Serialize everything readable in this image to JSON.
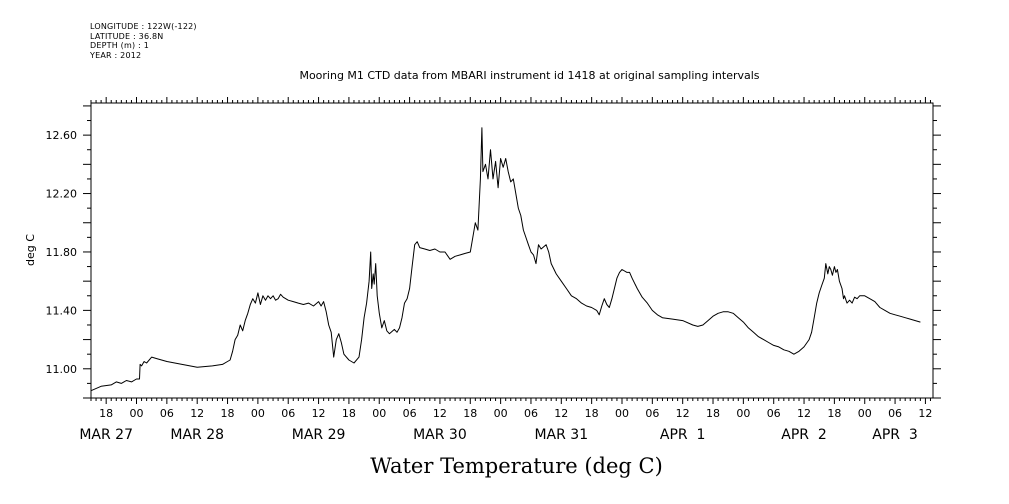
{
  "metadata": {
    "longitude": "LONGITUDE : 122W(-122)",
    "latitude": "LATITUDE : 36.8N",
    "depth": "DEPTH (m) : 1",
    "year": "YEAR : 2012"
  },
  "chart_data": {
    "type": "line",
    "title": "Mooring M1 CTD data from MBARI instrument id 1418 at original sampling intervals",
    "xlabel": "Water Temperature (deg C)",
    "ylabel": "deg C",
    "ylim": [
      10.8,
      12.82
    ],
    "xlim_hours": [
      0,
      166.5
    ],
    "y_ticks": [
      "11.00",
      "11.40",
      "11.80",
      "12.20",
      "12.60"
    ],
    "y_tick_values": [
      11.0,
      11.4,
      11.8,
      12.2,
      12.6
    ],
    "x_hour_labels": [
      {
        "label": "18",
        "t": 3
      },
      {
        "label": "00",
        "t": 9
      },
      {
        "label": "06",
        "t": 15
      },
      {
        "label": "12",
        "t": 21
      },
      {
        "label": "18",
        "t": 27
      },
      {
        "label": "00",
        "t": 33
      },
      {
        "label": "06",
        "t": 39
      },
      {
        "label": "12",
        "t": 45
      },
      {
        "label": "18",
        "t": 51
      },
      {
        "label": "00",
        "t": 57
      },
      {
        "label": "06",
        "t": 63
      },
      {
        "label": "12",
        "t": 69
      },
      {
        "label": "18",
        "t": 75
      },
      {
        "label": "00",
        "t": 81
      },
      {
        "label": "06",
        "t": 87
      },
      {
        "label": "12",
        "t": 93
      },
      {
        "label": "18",
        "t": 99
      },
      {
        "label": "00",
        "t": 105
      },
      {
        "label": "06",
        "t": 111
      },
      {
        "label": "12",
        "t": 117
      },
      {
        "label": "18",
        "t": 123
      },
      {
        "label": "00",
        "t": 129
      },
      {
        "label": "06",
        "t": 135
      },
      {
        "label": "12",
        "t": 141
      },
      {
        "label": "18",
        "t": 147
      },
      {
        "label": "00",
        "t": 153
      },
      {
        "label": "06",
        "t": 159
      },
      {
        "label": "12",
        "t": 165
      }
    ],
    "x_date_labels": [
      {
        "label": "MAR 27",
        "t": 3
      },
      {
        "label": "MAR 28",
        "t": 21
      },
      {
        "label": "MAR 29",
        "t": 45
      },
      {
        "label": "MAR 30",
        "t": 69
      },
      {
        "label": "MAR 31",
        "t": 93
      },
      {
        "label": "APR  1",
        "t": 117
      },
      {
        "label": "APR  2",
        "t": 141
      },
      {
        "label": "APR  3",
        "t": 159
      }
    ],
    "series": [
      {
        "color": "#000000",
        "points": [
          [
            0.0,
            10.85
          ],
          [
            2,
            10.88
          ],
          [
            4,
            10.89
          ],
          [
            5,
            10.91
          ],
          [
            6,
            10.9
          ],
          [
            7,
            10.92
          ],
          [
            8,
            10.91
          ],
          [
            9,
            10.93
          ],
          [
            9.6,
            10.93
          ],
          [
            9.7,
            11.03
          ],
          [
            10,
            11.02
          ],
          [
            10.5,
            11.05
          ],
          [
            11,
            11.04
          ],
          [
            12,
            11.08
          ],
          [
            13,
            11.07
          ],
          [
            15,
            11.05
          ],
          [
            18,
            11.03
          ],
          [
            21,
            11.01
          ],
          [
            24,
            11.02
          ],
          [
            26,
            11.03
          ],
          [
            27,
            11.05
          ],
          [
            27.5,
            11.06
          ],
          [
            28,
            11.12
          ],
          [
            28.5,
            11.2
          ],
          [
            29,
            11.23
          ],
          [
            29.5,
            11.3
          ],
          [
            30,
            11.26
          ],
          [
            30.5,
            11.33
          ],
          [
            31,
            11.38
          ],
          [
            31.5,
            11.44
          ],
          [
            32,
            11.48
          ],
          [
            32.5,
            11.45
          ],
          [
            33,
            11.52
          ],
          [
            33.5,
            11.44
          ],
          [
            34,
            11.5
          ],
          [
            34.5,
            11.47
          ],
          [
            35,
            11.5
          ],
          [
            35.5,
            11.48
          ],
          [
            36,
            11.5
          ],
          [
            36.5,
            11.47
          ],
          [
            37,
            11.48
          ],
          [
            37.5,
            11.51
          ],
          [
            38,
            11.49
          ],
          [
            38.5,
            11.48
          ],
          [
            39,
            11.47
          ],
          [
            40,
            11.46
          ],
          [
            41,
            11.45
          ],
          [
            42,
            11.44
          ],
          [
            43,
            11.45
          ],
          [
            44,
            11.43
          ],
          [
            45,
            11.46
          ],
          [
            45.5,
            11.43
          ],
          [
            46,
            11.46
          ],
          [
            46.5,
            11.39
          ],
          [
            47,
            11.3
          ],
          [
            47.5,
            11.25
          ],
          [
            48,
            11.08
          ],
          [
            48.5,
            11.2
          ],
          [
            49,
            11.24
          ],
          [
            49.5,
            11.18
          ],
          [
            50,
            11.1
          ],
          [
            51,
            11.06
          ],
          [
            52,
            11.04
          ],
          [
            53,
            11.08
          ],
          [
            53.5,
            11.2
          ],
          [
            54,
            11.35
          ],
          [
            54.5,
            11.45
          ],
          [
            55,
            11.6
          ],
          [
            55.3,
            11.8
          ],
          [
            55.5,
            11.55
          ],
          [
            55.8,
            11.65
          ],
          [
            56,
            11.58
          ],
          [
            56.3,
            11.72
          ],
          [
            56.6,
            11.5
          ],
          [
            57,
            11.38
          ],
          [
            57.5,
            11.28
          ],
          [
            58,
            11.33
          ],
          [
            58.5,
            11.26
          ],
          [
            59,
            11.24
          ],
          [
            60,
            11.27
          ],
          [
            60.5,
            11.25
          ],
          [
            61,
            11.28
          ],
          [
            61.5,
            11.35
          ],
          [
            62,
            11.45
          ],
          [
            62.5,
            11.48
          ],
          [
            63,
            11.55
          ],
          [
            63.5,
            11.7
          ],
          [
            64,
            11.85
          ],
          [
            64.5,
            11.87
          ],
          [
            65,
            11.83
          ],
          [
            66,
            11.82
          ],
          [
            67,
            11.81
          ],
          [
            68,
            11.82
          ],
          [
            69,
            11.8
          ],
          [
            70,
            11.8
          ],
          [
            71,
            11.75
          ],
          [
            72,
            11.77
          ],
          [
            73,
            11.78
          ],
          [
            74,
            11.79
          ],
          [
            75,
            11.8
          ],
          [
            75.5,
            11.9
          ],
          [
            76,
            12.0
          ],
          [
            76.5,
            11.95
          ],
          [
            77,
            12.3
          ],
          [
            77.3,
            12.65
          ],
          [
            77.5,
            12.35
          ],
          [
            78,
            12.4
          ],
          [
            78.5,
            12.3
          ],
          [
            79,
            12.5
          ],
          [
            79.5,
            12.3
          ],
          [
            80,
            12.42
          ],
          [
            80.5,
            12.24
          ],
          [
            81,
            12.44
          ],
          [
            81.5,
            12.38
          ],
          [
            82,
            12.44
          ],
          [
            82.5,
            12.35
          ],
          [
            83,
            12.28
          ],
          [
            83.5,
            12.3
          ],
          [
            84,
            12.2
          ],
          [
            84.5,
            12.1
          ],
          [
            85,
            12.05
          ],
          [
            85.5,
            11.95
          ],
          [
            86,
            11.9
          ],
          [
            86.5,
            11.85
          ],
          [
            87,
            11.8
          ],
          [
            87.5,
            11.78
          ],
          [
            88,
            11.72
          ],
          [
            88.5,
            11.85
          ],
          [
            89,
            11.82
          ],
          [
            90,
            11.85
          ],
          [
            90.5,
            11.8
          ],
          [
            91,
            11.72
          ],
          [
            92,
            11.65
          ],
          [
            93,
            11.6
          ],
          [
            94,
            11.55
          ],
          [
            95,
            11.5
          ],
          [
            96,
            11.48
          ],
          [
            97,
            11.45
          ],
          [
            98,
            11.43
          ],
          [
            99,
            11.42
          ],
          [
            100,
            11.4
          ],
          [
            100.5,
            11.37
          ],
          [
            101,
            11.43
          ],
          [
            101.5,
            11.48
          ],
          [
            102,
            11.44
          ],
          [
            102.5,
            11.42
          ],
          [
            103,
            11.48
          ],
          [
            103.5,
            11.55
          ],
          [
            104,
            11.62
          ],
          [
            104.5,
            11.66
          ],
          [
            105,
            11.68
          ],
          [
            106,
            11.66
          ],
          [
            106.5,
            11.66
          ],
          [
            107,
            11.62
          ],
          [
            108,
            11.55
          ],
          [
            109,
            11.49
          ],
          [
            110,
            11.45
          ],
          [
            111,
            11.4
          ],
          [
            112,
            11.37
          ],
          [
            113,
            11.35
          ],
          [
            115,
            11.34
          ],
          [
            117,
            11.33
          ],
          [
            119,
            11.3
          ],
          [
            120,
            11.29
          ],
          [
            121,
            11.3
          ],
          [
            122,
            11.33
          ],
          [
            123,
            11.36
          ],
          [
            124,
            11.38
          ],
          [
            125,
            11.39
          ],
          [
            126,
            11.39
          ],
          [
            127,
            11.38
          ],
          [
            128,
            11.35
          ],
          [
            129,
            11.32
          ],
          [
            130,
            11.28
          ],
          [
            131,
            11.25
          ],
          [
            132,
            11.22
          ],
          [
            133,
            11.2
          ],
          [
            134,
            11.18
          ],
          [
            135,
            11.16
          ],
          [
            136,
            11.15
          ],
          [
            137,
            11.13
          ],
          [
            138,
            11.12
          ],
          [
            139,
            11.1
          ],
          [
            140,
            11.12
          ],
          [
            141,
            11.15
          ],
          [
            142,
            11.2
          ],
          [
            142.5,
            11.25
          ],
          [
            143,
            11.35
          ],
          [
            143.5,
            11.45
          ],
          [
            144,
            11.52
          ],
          [
            144.5,
            11.57
          ],
          [
            145,
            11.62
          ],
          [
            145.3,
            11.72
          ],
          [
            145.7,
            11.65
          ],
          [
            146,
            11.7
          ],
          [
            146.3,
            11.68
          ],
          [
            146.6,
            11.64
          ],
          [
            147,
            11.7
          ],
          [
            147.3,
            11.66
          ],
          [
            147.6,
            11.68
          ],
          [
            148,
            11.6
          ],
          [
            148.5,
            11.55
          ],
          [
            148.8,
            11.48
          ],
          [
            149,
            11.5
          ],
          [
            149.5,
            11.45
          ],
          [
            150,
            11.47
          ],
          [
            150.5,
            11.45
          ],
          [
            151,
            11.49
          ],
          [
            151.5,
            11.48
          ],
          [
            152,
            11.5
          ],
          [
            153,
            11.5
          ],
          [
            154,
            11.48
          ],
          [
            155,
            11.46
          ],
          [
            156,
            11.42
          ],
          [
            157,
            11.4
          ],
          [
            158,
            11.38
          ],
          [
            159,
            11.37
          ],
          [
            160,
            11.36
          ],
          [
            161,
            11.35
          ],
          [
            162,
            11.34
          ],
          [
            163,
            11.33
          ],
          [
            164,
            11.32
          ]
        ]
      }
    ]
  }
}
